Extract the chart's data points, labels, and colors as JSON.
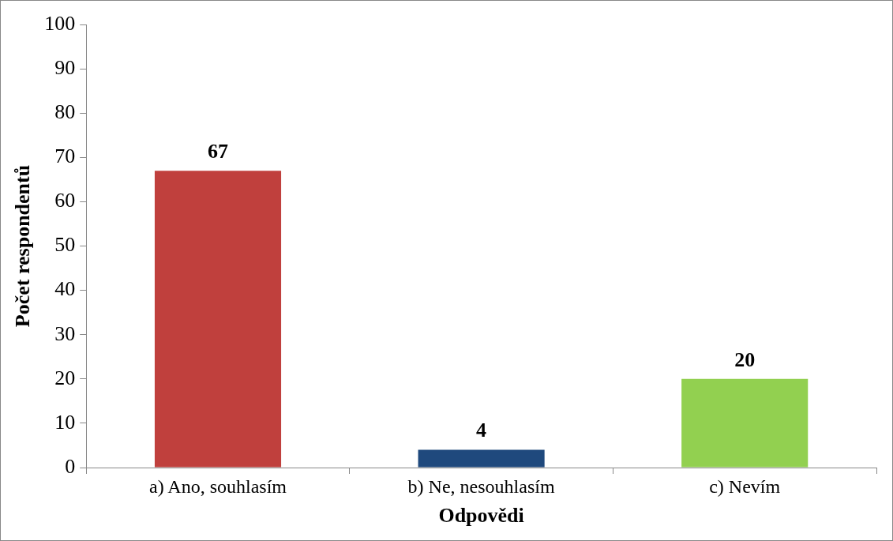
{
  "chart_data": {
    "type": "bar",
    "xlabel": "Odpovědi",
    "ylabel": "Počet respondentů",
    "categories": [
      "a) Ano, souhlasím",
      "b) Ne, nesouhlasím",
      "c) Nevím"
    ],
    "values": [
      67,
      4,
      20
    ],
    "colors": [
      "#c0403d",
      "#1f497d",
      "#92d050"
    ],
    "ylim": [
      0,
      100
    ],
    "yticks": [
      0,
      10,
      20,
      30,
      40,
      50,
      60,
      70,
      80,
      90,
      100
    ],
    "data_labels": true,
    "grid": false,
    "legend": false
  }
}
